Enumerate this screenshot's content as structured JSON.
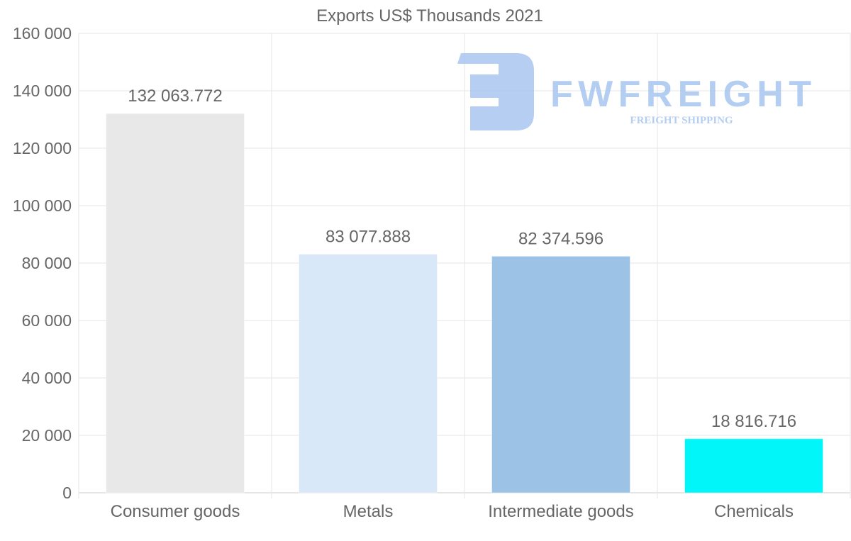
{
  "chart_data": {
    "type": "bar",
    "title": "Exports US$ Thousands 2021",
    "categories": [
      "Consumer goods",
      "Metals",
      "Intermediate goods",
      "Chemicals"
    ],
    "values": [
      132063.772,
      83077.888,
      82374.596,
      18816.716
    ],
    "data_labels": [
      "132 063.772",
      "83 077.888",
      "82 374.596",
      "18 816.716"
    ],
    "colors": [
      "#e8e8e8",
      "#d8e8f8",
      "#9cc3e6",
      "#00f6f8"
    ],
    "ylim": [
      0,
      160000
    ],
    "yticks": [
      0,
      20000,
      40000,
      60000,
      80000,
      100000,
      120000,
      140000,
      160000
    ],
    "ytick_labels": [
      "0",
      "20 000",
      "40 000",
      "60 000",
      "80 000",
      "100 000",
      "120 000",
      "140 000",
      "160 000"
    ],
    "xlabel": "",
    "ylabel": "",
    "grid": true,
    "legend": "none"
  },
  "watermark": {
    "brand": "FWFREIGHT",
    "tagline": "FREIGHT SHIPPING",
    "color": "#a8c6f0"
  }
}
